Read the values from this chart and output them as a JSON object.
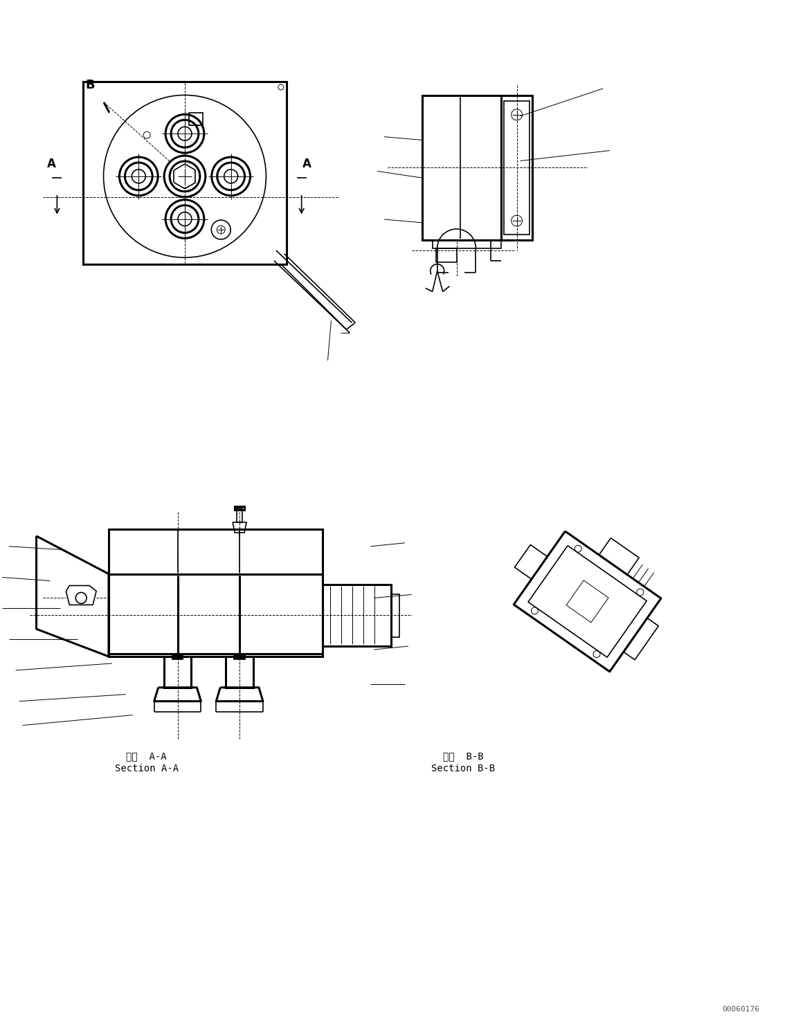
{
  "background_color": "#ffffff",
  "line_color": "#000000",
  "fig_width": 11.37,
  "fig_height": 14.86,
  "section_aa_label_jp": "断面  A-A",
  "section_aa_label_en": "Section A-A",
  "section_bb_label_jp": "断面  B-B",
  "section_bb_label_en": "Section B-B",
  "watermark": "00060176"
}
